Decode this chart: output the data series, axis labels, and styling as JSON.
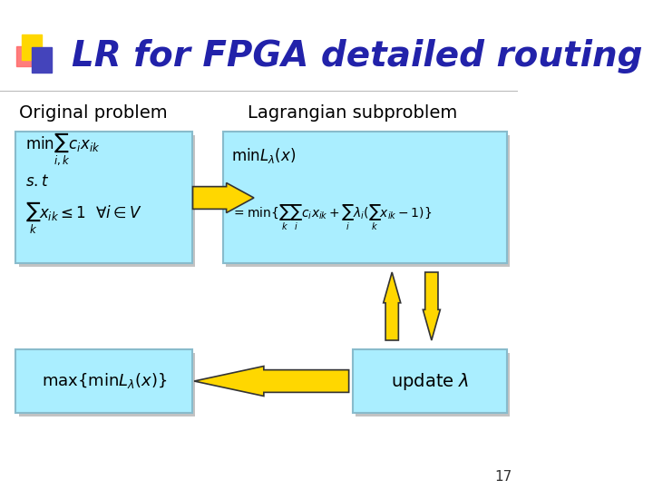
{
  "title": "LR for FPGA detailed routing",
  "title_color": "#2222AA",
  "title_fontsize": 28,
  "bg_color": "#FFFFFF",
  "label_left": "Original problem",
  "label_right": "Lagrangian subproblem",
  "label_fontsize": 14,
  "label_color": "#000000",
  "box_color": "#AAEEFF",
  "box_edge_color": "#88BBCC",
  "shadow_color": "#888888",
  "arrow_color": "#FFD700",
  "arrow_edge": "#333333",
  "page_number": "17",
  "logo_yellow": "#FFD700",
  "logo_red": "#FF6666",
  "logo_blue": "#4444BB"
}
